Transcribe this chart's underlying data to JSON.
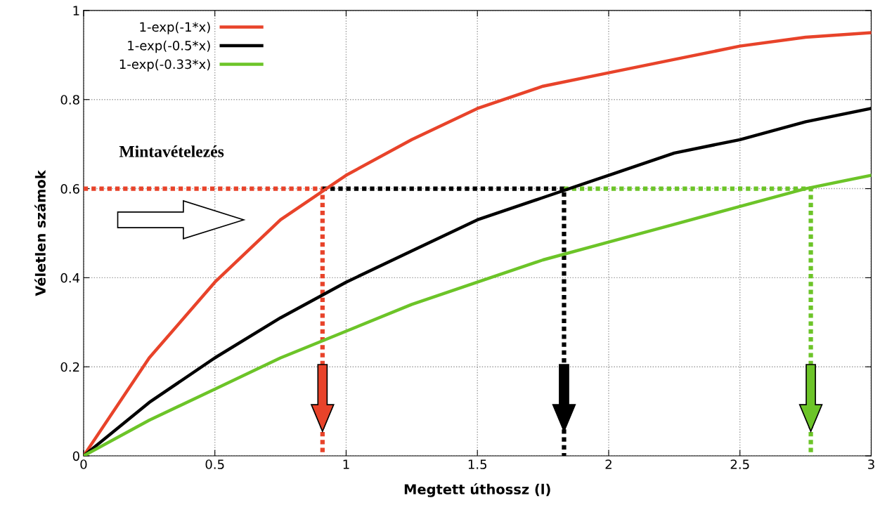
{
  "chart_data": {
    "type": "line",
    "xlabel": "Megtett úthossz (l)",
    "ylabel": "Véletlen számok",
    "x": [
      0,
      0.25,
      0.5,
      0.75,
      1,
      1.25,
      1.5,
      1.75,
      2,
      2.25,
      2.5,
      2.75,
      3
    ],
    "series": [
      {
        "name": "1-exp(-1*x)",
        "color": "#e8432a",
        "values": [
          0,
          0.22,
          0.39,
          0.53,
          0.63,
          0.71,
          0.78,
          0.83,
          0.86,
          0.89,
          0.92,
          0.94,
          0.95
        ]
      },
      {
        "name": "1-exp(-0.5*x)",
        "color": "#000000",
        "values": [
          0,
          0.12,
          0.22,
          0.31,
          0.39,
          0.46,
          0.53,
          0.58,
          0.63,
          0.68,
          0.71,
          0.75,
          0.78
        ]
      },
      {
        "name": "1-exp(-0.33*x)",
        "color": "#6cc428",
        "values": [
          0,
          0.08,
          0.15,
          0.22,
          0.28,
          0.34,
          0.39,
          0.44,
          0.48,
          0.52,
          0.56,
          0.6,
          0.63
        ]
      },
      {
        "color": "#e8432a",
        "line_style": "dotted",
        "x": [
          0,
          0.91,
          0.91
        ],
        "values": [
          0.6,
          0.6,
          0
        ]
      },
      {
        "color": "#000000",
        "line_style": "dotted",
        "x": [
          0.91,
          1.83,
          1.83
        ],
        "values": [
          0.6,
          0.6,
          0
        ]
      },
      {
        "color": "#6cc428",
        "line_style": "dotted",
        "x": [
          1.83,
          2.77,
          2.77
        ],
        "values": [
          0.6,
          0.6,
          0
        ]
      }
    ],
    "annotations": [
      "Mintavételezés"
    ],
    "xlim": [
      0,
      3
    ],
    "xticks": [
      0,
      0.5,
      1,
      1.5,
      2,
      2.5,
      3
    ],
    "ylim": [
      0,
      1
    ],
    "yticks": [
      0,
      0.2,
      0.4,
      0.6,
      0.8,
      1
    ],
    "grid": true,
    "legend": "top left",
    "line_style": "solid",
    "marker": "none"
  }
}
